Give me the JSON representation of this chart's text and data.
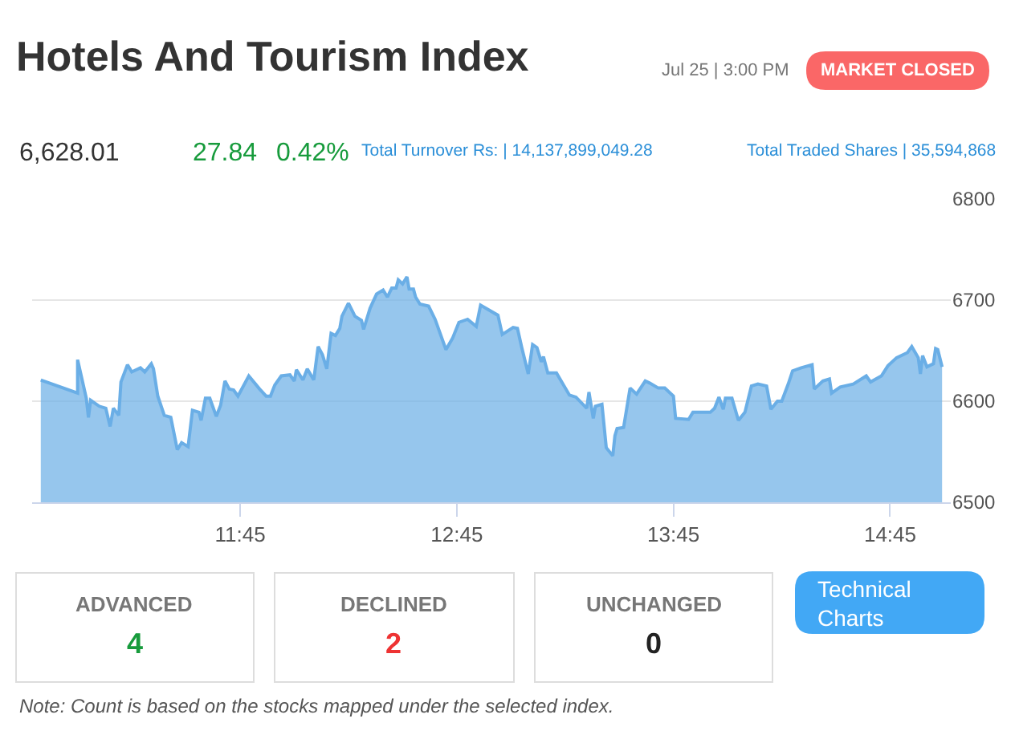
{
  "chart_data": {
    "type": "area",
    "title": "Hotels And Tourism Index",
    "annotations": [
      "Jul 25 | 3:00 PM",
      "MARKET CLOSED",
      "6,628.01",
      "27.84",
      "0.42%",
      "Total Turnover Rs: | 14,137,899,049.28",
      "Total Traded Shares | 35,594,868",
      "ADVANCED",
      "4",
      "DECLINED",
      "2",
      "UNCHANGED",
      "0",
      "Technical Charts",
      "Note: Count is based on the stocks mapped under the selected index."
    ],
    "series": [
      {
        "color": "#6aaee6",
        "x": [
          10.83,
          11.0,
          11.0,
          11.04,
          11.05,
          11.06,
          11.1,
          11.13,
          11.15,
          11.165,
          11.19,
          11.2,
          11.23,
          11.25,
          11.29,
          11.31,
          11.34,
          11.35,
          11.37,
          11.4,
          11.43,
          11.46,
          11.48,
          11.51,
          11.53,
          11.56,
          11.57,
          11.59,
          11.61,
          11.64,
          11.66,
          11.68,
          11.7,
          11.72,
          11.74,
          11.79,
          11.84,
          11.87,
          11.89,
          11.91,
          11.94,
          11.98,
          12.0,
          12.01,
          12.04,
          12.06,
          12.09,
          12.11,
          12.13,
          12.15,
          12.17,
          12.19,
          12.21,
          12.22,
          12.25,
          12.28,
          12.31,
          12.32,
          12.35,
          12.38,
          12.41,
          12.43,
          12.45,
          12.47,
          12.48,
          12.5,
          12.52,
          12.53,
          12.55,
          12.56,
          12.58,
          12.62,
          12.65,
          12.7,
          12.73,
          12.76,
          12.8,
          12.84,
          12.86,
          12.94,
          12.96,
          13.01,
          13.03,
          13.05,
          13.08,
          13.1,
          13.12,
          13.14,
          13.15,
          13.17,
          13.21,
          13.27,
          13.3,
          13.35,
          13.36,
          13.38,
          13.39,
          13.42,
          13.44,
          13.47,
          13.48,
          13.49,
          13.52,
          13.55,
          13.58,
          13.62,
          13.64,
          13.68,
          13.71,
          13.75,
          13.76,
          13.82,
          13.84,
          13.92,
          13.94,
          13.96,
          13.98,
          13.99,
          14.02,
          14.05,
          14.08,
          14.11,
          14.14,
          14.18,
          14.2,
          14.23,
          14.25,
          14.28,
          14.3,
          14.34,
          14.39,
          14.4,
          14.44,
          14.47,
          14.48,
          14.52,
          14.58,
          14.64,
          14.66,
          14.71,
          14.74,
          14.78,
          14.83,
          14.85,
          14.88,
          14.89,
          14.9,
          14.92,
          14.95,
          14.96,
          14.97,
          14.99
        ],
        "values": [
          6621,
          6608,
          6641,
          6603,
          6584,
          6601,
          6595,
          6593,
          6575,
          6593,
          6586,
          6619,
          6636,
          6629,
          6633,
          6629,
          6637,
          6632,
          6605,
          6586,
          6584,
          6552,
          6559,
          6555,
          6591,
          6589,
          6581,
          6603,
          6603,
          6585,
          6596,
          6620,
          6612,
          6611,
          6605,
          6625,
          6612,
          6605,
          6605,
          6616,
          6625,
          6626,
          6620,
          6631,
          6621,
          6632,
          6621,
          6654,
          6646,
          6632,
          6667,
          6665,
          6672,
          6684,
          6697,
          6684,
          6680,
          6671,
          6692,
          6706,
          6710,
          6703,
          6712,
          6712,
          6720,
          6716,
          6723,
          6711,
          6711,
          6703,
          6696,
          6694,
          6681,
          6651,
          6662,
          6678,
          6681,
          6674,
          6695,
          6685,
          6666,
          6673,
          6672,
          6653,
          6627,
          6656,
          6653,
          6639,
          6644,
          6628,
          6628,
          6606,
          6604,
          6593,
          6609,
          6583,
          6595,
          6597,
          6554,
          6546,
          6566,
          6573,
          6574,
          6613,
          6607,
          6620,
          6618,
          6613,
          6613,
          6605,
          6583,
          6582,
          6589,
          6589,
          6593,
          6604,
          6592,
          6603,
          6603,
          6581,
          6589,
          6615,
          6617,
          6615,
          6592,
          6600,
          6600,
          6617,
          6630,
          6633,
          6636,
          6612,
          6620,
          6622,
          6608,
          6614,
          6617,
          6625,
          6619,
          6625,
          6635,
          6643,
          6648,
          6654,
          6643,
          6627,
          6645,
          6634,
          6637,
          6652,
          6651,
          6634
        ]
      }
    ],
    "xlim": [
      10.79,
      15.03
    ],
    "xticks": [
      {
        "value": 11.75,
        "label": "11:45"
      },
      {
        "value": 12.75,
        "label": "12:45"
      },
      {
        "value": 13.75,
        "label": "13:45"
      },
      {
        "value": 14.75,
        "label": "14:45"
      }
    ],
    "ylim": [
      6500,
      6800
    ],
    "yticks": [
      6500,
      6600,
      6700,
      6800
    ],
    "grid": "y",
    "marker": "none",
    "line_style": "solid"
  }
}
